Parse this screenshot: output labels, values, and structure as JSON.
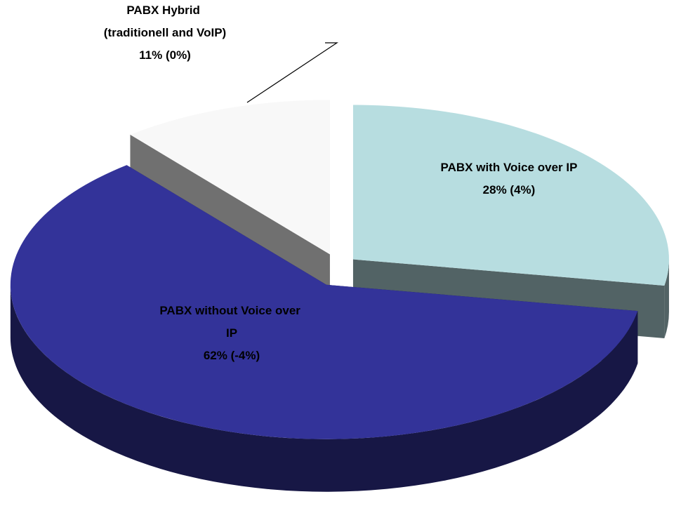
{
  "chart_data": {
    "type": "pie",
    "categories": [
      "PABX with Voice over IP",
      "PABX without Voice over IP",
      "PABX Hybrid (traditionell and VoIP)"
    ],
    "values": [
      28,
      62,
      11
    ],
    "value_labels": [
      "28%",
      "62%",
      "11%"
    ],
    "changes": [
      4,
      -4,
      0
    ],
    "change_labels": [
      "(4%)",
      "(-4%)",
      "(0%)"
    ],
    "colors": [
      "#b7dde0",
      "#333399",
      "#f8f8f8"
    ]
  }
}
